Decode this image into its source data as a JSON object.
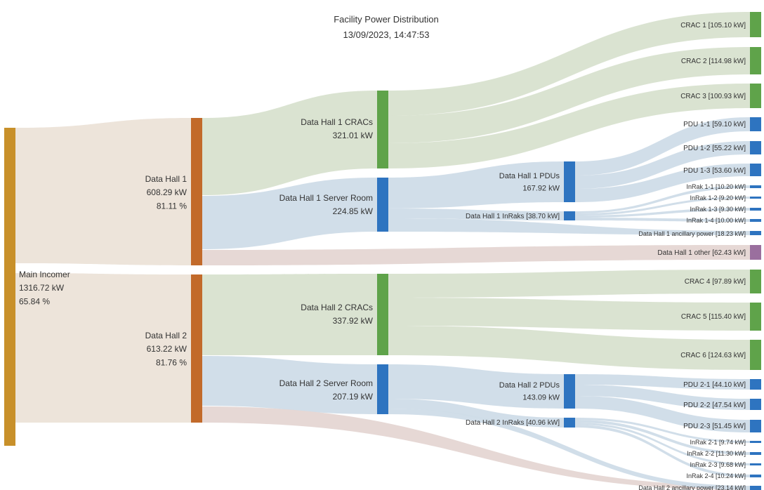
{
  "header": {
    "title": "Facility Power Distribution",
    "timestamp": "13/09/2023, 14:47:53"
  },
  "colors": {
    "incomer": "#c8902a",
    "hall": "#c26a2a",
    "cracs": "#5fa34a",
    "server": "#2e74c0",
    "other": "#9a6f9e",
    "flow_beige": "#ece3d8",
    "flow_green": "#d8e1cf",
    "flow_blue": "#cfdce8",
    "flow_pink": "#e5d6d3"
  },
  "nodes": {
    "main": [
      "Main Incomer",
      "1316.72 kW",
      "65.84 %"
    ],
    "dh1": [
      "Data Hall 1",
      "608.29 kW",
      "81.11 %"
    ],
    "dh2": [
      "Data Hall 2",
      "613.22 kW",
      "81.76 %"
    ],
    "dh1c": [
      "Data Hall 1 CRACs",
      "321.01 kW"
    ],
    "dh1s": [
      "Data Hall 1 Server Room",
      "224.85 kW"
    ],
    "dh2c": [
      "Data Hall 2 CRACs",
      "337.92 kW"
    ],
    "dh2s": [
      "Data Hall 2 Server Room",
      "207.19 kW"
    ],
    "dh1p": [
      "Data Hall 1 PDUs",
      "167.92 kW"
    ],
    "dh1i": [
      "Data Hall 1 InRaks [38.70 kW]"
    ],
    "dh2p": [
      "Data Hall 2 PDUs",
      "143.09 kW"
    ],
    "dh2i": [
      "Data Hall 2 InRaks [40.96 kW]"
    ],
    "crac1": [
      "CRAC 1 [105.10 kW]"
    ],
    "crac2": [
      "CRAC 2 [114.98 kW]"
    ],
    "crac3": [
      "CRAC 3 [100.93 kW]"
    ],
    "pdu11": [
      "PDU 1-1 [59.10 kW]"
    ],
    "pdu12": [
      "PDU 1-2 [55.22 kW]"
    ],
    "pdu13": [
      "PDU 1-3 [53.60 kW]"
    ],
    "ir11": [
      "InRak 1-1 [10.20 kW]"
    ],
    "ir12": [
      "InRak 1-2 [9.20 kW]"
    ],
    "ir13": [
      "InRak 1-3 [9.30 kW]"
    ],
    "ir14": [
      "InRak 1-4 [10.00 kW]"
    ],
    "anc1": [
      "Data Hall 1 ancillary power [18.23 kW]"
    ],
    "oth1": [
      "Data Hall 1 other [62.43 kW]"
    ],
    "crac4": [
      "CRAC 4 [97.89 kW]"
    ],
    "crac5": [
      "CRAC 5 [115.40 kW]"
    ],
    "crac6": [
      "CRAC 6 [124.63 kW]"
    ],
    "pdu21": [
      "PDU 2-1 [44.10 kW]"
    ],
    "pdu22": [
      "PDU 2-2 [47.54 kW]"
    ],
    "pdu23": [
      "PDU 2-3 [51.45 kW]"
    ],
    "ir21": [
      "InRak 2-1 [9.74 kW]"
    ],
    "ir22": [
      "InRak 2-2 [11.30 kW]"
    ],
    "ir23": [
      "InRak 2-3 [9.68 kW]"
    ],
    "ir24": [
      "InRak 2-4 [10.24 kW]"
    ],
    "anc2": [
      "Data Hall 2 ancillary power [23.14 kW]"
    ]
  }
}
